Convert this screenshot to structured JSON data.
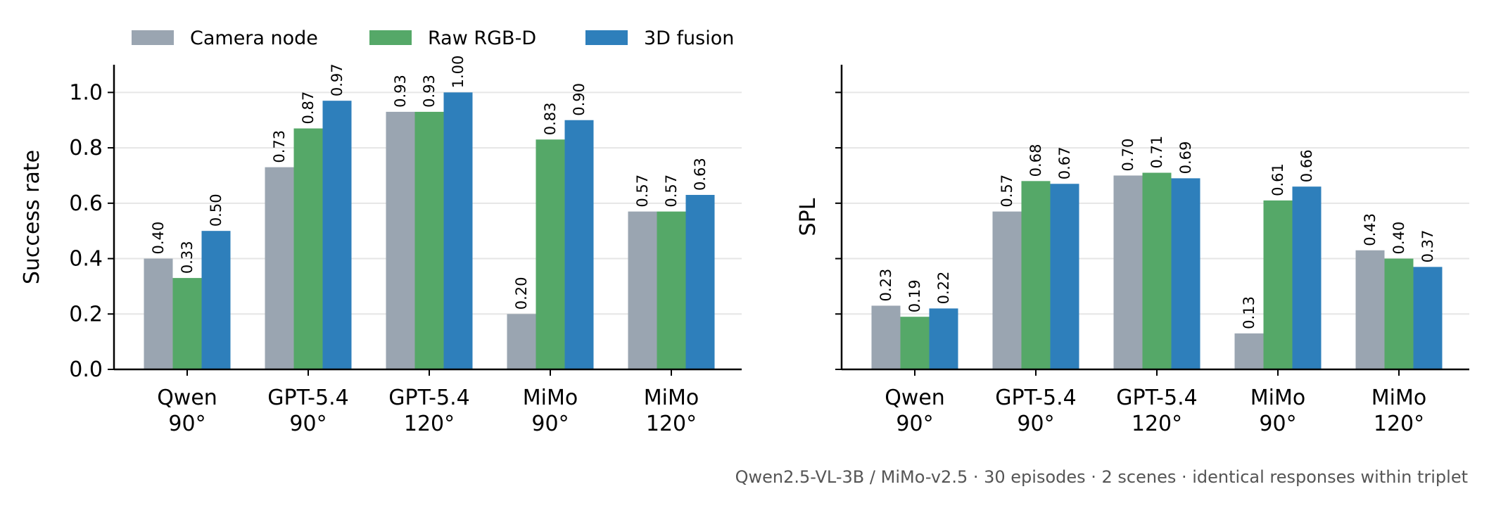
{
  "chart_data": [
    {
      "type": "bar",
      "categories": [
        "Qwen\n90°",
        "GPT-5.4\n90°",
        "GPT-5.4\n120°",
        "MiMo\n90°",
        "MiMo\n120°"
      ],
      "series": [
        {
          "name": "Camera node",
          "color": "#9aa5b1",
          "values": [
            0.4,
            0.73,
            0.93,
            0.2,
            0.57
          ]
        },
        {
          "name": "Raw RGB-D",
          "color": "#55a868",
          "values": [
            0.33,
            0.87,
            0.93,
            0.83,
            0.57
          ]
        },
        {
          "name": "3D fusion",
          "color": "#2e7fbb",
          "values": [
            0.5,
            0.97,
            1.0,
            0.9,
            0.63
          ]
        }
      ],
      "value_labels": [
        [
          "0.40",
          "0.73",
          "0.93",
          "0.20",
          "0.57"
        ],
        [
          "0.33",
          "0.87",
          "0.93",
          "0.83",
          "0.57"
        ],
        [
          "0.50",
          "0.97",
          "1.00",
          "0.90",
          "0.63"
        ]
      ],
      "ylabel": "Success rate",
      "ylim": [
        0,
        1.1
      ],
      "yticks": [
        "0.0",
        "0.2",
        "0.4",
        "0.6",
        "0.8",
        "1.0"
      ],
      "grid": "horizontal"
    },
    {
      "type": "bar",
      "categories": [
        "Qwen\n90°",
        "GPT-5.4\n90°",
        "GPT-5.4\n120°",
        "MiMo\n90°",
        "MiMo\n120°"
      ],
      "series": [
        {
          "name": "Camera node",
          "color": "#9aa5b1",
          "values": [
            0.23,
            0.57,
            0.7,
            0.13,
            0.43
          ]
        },
        {
          "name": "Raw RGB-D",
          "color": "#55a868",
          "values": [
            0.19,
            0.68,
            0.71,
            0.61,
            0.4
          ]
        },
        {
          "name": "3D fusion",
          "color": "#2e7fbb",
          "values": [
            0.22,
            0.67,
            0.69,
            0.66,
            0.37
          ]
        }
      ],
      "value_labels": [
        [
          "0.23",
          "0.57",
          "0.70",
          "0.13",
          "0.43"
        ],
        [
          "0.19",
          "0.68",
          "0.71",
          "0.61",
          "0.40"
        ],
        [
          "0.22",
          "0.67",
          "0.69",
          "0.66",
          "0.37"
        ]
      ],
      "ylabel": "SPL",
      "ylim": [
        0,
        1.1
      ],
      "grid": "horizontal"
    }
  ],
  "legend": {
    "placement": "top-left",
    "items": [
      {
        "label": "Camera node",
        "color": "#9aa5b1"
      },
      {
        "label": "Raw RGB-D",
        "color": "#55a868"
      },
      {
        "label": "3D fusion",
        "color": "#2e7fbb"
      }
    ]
  },
  "footnote": "Qwen2.5-VL-3B / MiMo-v2.5 · 30 episodes · 2 scenes · identical responses within triplet"
}
